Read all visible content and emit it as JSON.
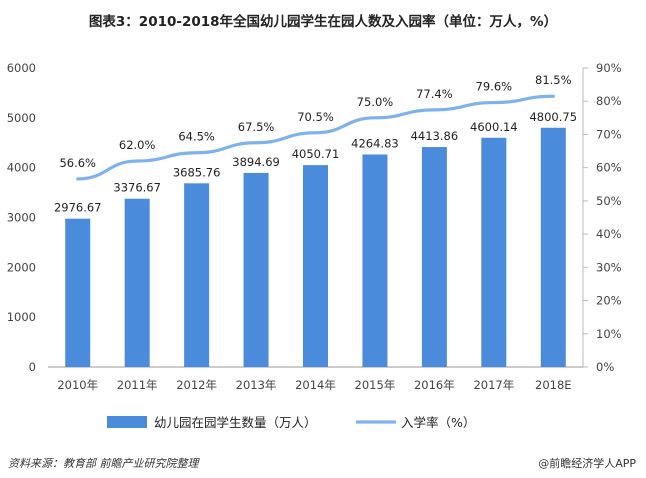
{
  "title": "图表3：2010-2018年全国幼儿园学生在园人数及入园率（单位：万人，%）",
  "chart_data": {
    "type": "bar",
    "categories": [
      "2010年",
      "2011年",
      "2012年",
      "2013年",
      "2014年",
      "2015年",
      "2016年",
      "2017年",
      "2018E"
    ],
    "series": [
      {
        "name": "幼儿园在园学生数量（万人）",
        "type": "bar",
        "axis": "left",
        "color": "#4a8bdc",
        "values": [
          2976.67,
          3376.67,
          3685.76,
          3894.69,
          4050.71,
          4264.83,
          4413.86,
          4600.14,
          4800.75
        ],
        "labels": [
          "2976.67",
          "3376.67",
          "3685.76",
          "3894.69",
          "4050.71",
          "4264.83",
          "4413.86",
          "4600.14",
          "4800.75"
        ]
      },
      {
        "name": "入学率（%）",
        "type": "line",
        "axis": "right",
        "color": "#7fb2ec",
        "values": [
          56.6,
          62.0,
          64.5,
          67.5,
          70.5,
          75.0,
          77.4,
          79.6,
          81.5
        ],
        "labels": [
          "56.6%",
          "62.0%",
          "64.5%",
          "67.5%",
          "70.5%",
          "75.0%",
          "77.4%",
          "79.6%",
          "81.5%"
        ]
      }
    ],
    "y_left": {
      "ylim": [
        0,
        6000
      ],
      "ticks": [
        "0",
        "1000",
        "2000",
        "3000",
        "4000",
        "5000",
        "6000"
      ]
    },
    "y_right": {
      "ylim": [
        0,
        90
      ],
      "ticks": [
        "0%",
        "10%",
        "20%",
        "30%",
        "40%",
        "50%",
        "60%",
        "70%",
        "80%",
        "90%"
      ]
    },
    "grid": false,
    "legend_position": "bottom"
  },
  "footer": {
    "source": "资料来源：教育部  前瞻产业研究院整理",
    "brand": "@前瞻经济学人APP"
  }
}
